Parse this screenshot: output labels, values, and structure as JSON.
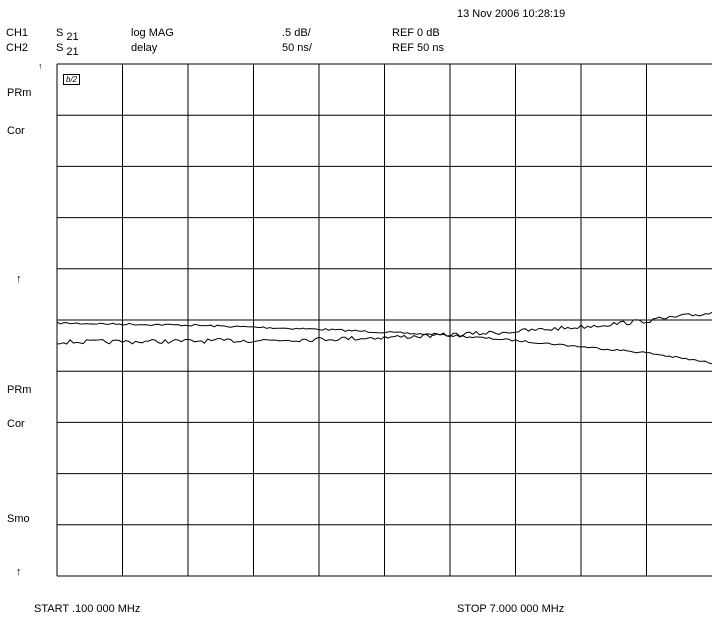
{
  "header": {
    "datetime": "13 Nov 2006  10:28:19",
    "ch1": {
      "label": "CH1",
      "param": "S",
      "param_sub": "21",
      "format": "log MAG",
      "scale": ".5 dB/",
      "ref": "REF 0 dB"
    },
    "ch2": {
      "label": "CH2",
      "param": "S",
      "param_sub": "21",
      "format": "delay",
      "scale": "50 ns/",
      "ref": "REF 50 ns"
    }
  },
  "side_annotations": {
    "ch1_prm": "PRm",
    "ch1_cor": "Cor",
    "ch1_ref_arrow": "↑",
    "ch2_prm": "PRm",
    "ch2_cor": "Cor",
    "ch2_smo": "Smo",
    "ch2_ref_arrow": "↑",
    "marker_box": "b/2"
  },
  "footer": {
    "start": "START  .100 000 MHz",
    "stop": "STOP  7.000 000 MHz"
  },
  "colors": {
    "trace": "#000000",
    "grid": "#000000",
    "background": "#ffffff"
  },
  "chart_data": {
    "type": "line",
    "grid": true,
    "x_range_mhz": [
      0.1,
      7.0
    ],
    "divisions": {
      "x": 10,
      "y": 10
    },
    "series": [
      {
        "name": "CH1",
        "x": [
          0.1,
          0.79,
          1.48,
          2.17,
          2.86,
          3.55,
          4.24,
          4.93,
          5.62,
          6.31,
          7.0
        ],
        "y": [
          -0.03,
          -0.04,
          -0.05,
          -0.07,
          -0.09,
          -0.12,
          -0.15,
          -0.2,
          -0.26,
          -0.32,
          -0.42
        ],
        "unit": "dB",
        "scale_per_div": 0.5,
        "ref": 0
      },
      {
        "name": "CH2",
        "x": [
          0.1,
          0.79,
          1.48,
          2.17,
          2.86,
          3.55,
          4.24,
          4.93,
          5.62,
          6.31,
          7.0
        ],
        "y": [
          28.5,
          28.8,
          29.3,
          30.1,
          31.3,
          33.0,
          35.4,
          38.8,
          43.3,
          49.2,
          57.0
        ],
        "unit": "ns",
        "scale_per_div": 50,
        "ref": 50
      }
    ]
  }
}
